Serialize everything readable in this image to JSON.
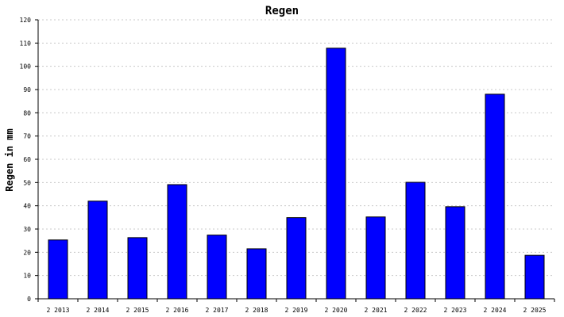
{
  "chart_data": {
    "type": "bar",
    "title": "Regen",
    "xlabel": "",
    "ylabel": "Regen in mm",
    "categories": [
      "2 2013",
      "2 2014",
      "2 2015",
      "2 2016",
      "2 2017",
      "2 2018",
      "2 2019",
      "2 2020",
      "2 2021",
      "2 2022",
      "2 2023",
      "2 2024",
      "2 2025"
    ],
    "values": [
      25.3,
      42.0,
      26.3,
      49.1,
      27.4,
      21.5,
      34.9,
      107.8,
      35.2,
      50.1,
      39.6,
      88.0,
      18.7
    ],
    "ylim": [
      0,
      120
    ],
    "yticks": [
      0,
      10,
      20,
      30,
      40,
      50,
      60,
      70,
      80,
      90,
      100,
      110,
      120
    ],
    "grid": true,
    "bar_color": "#0000ff",
    "legend": "none"
  }
}
